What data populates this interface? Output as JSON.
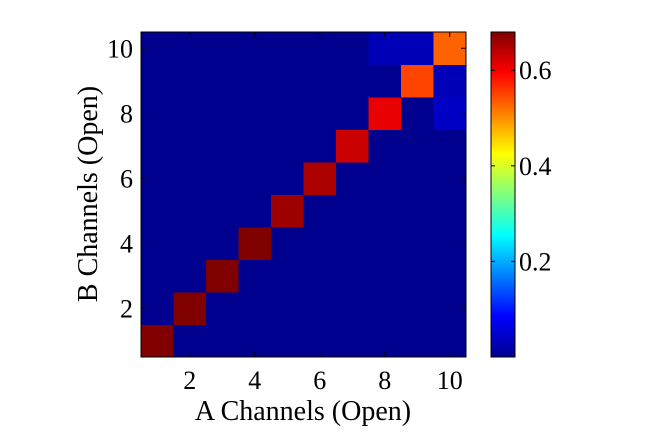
{
  "chart_data": {
    "type": "heatmap",
    "title": "",
    "xlabel": "A Channels (Open)",
    "ylabel": "B Channels (Open)",
    "x_categories": [
      1,
      2,
      3,
      4,
      5,
      6,
      7,
      8,
      9,
      10
    ],
    "y_categories": [
      1,
      2,
      3,
      4,
      5,
      6,
      7,
      8,
      9,
      10
    ],
    "x_ticks": [
      "2",
      "4",
      "6",
      "8",
      "10"
    ],
    "y_ticks": [
      "2",
      "4",
      "6",
      "8",
      "10"
    ],
    "colormap": "jet",
    "clim": [
      0.0,
      0.68
    ],
    "colorbar_ticks": [
      "0.2",
      "0.4",
      "0.6"
    ],
    "colorbar_tick_values": [
      0.2,
      0.4,
      0.6
    ],
    "cells": [
      {
        "x": 1,
        "y": 1,
        "value": 0.68
      },
      {
        "x": 2,
        "y": 2,
        "value": 0.68
      },
      {
        "x": 3,
        "y": 3,
        "value": 0.68
      },
      {
        "x": 4,
        "y": 4,
        "value": 0.68
      },
      {
        "x": 5,
        "y": 5,
        "value": 0.66
      },
      {
        "x": 6,
        "y": 6,
        "value": 0.65
      },
      {
        "x": 7,
        "y": 7,
        "value": 0.63
      },
      {
        "x": 8,
        "y": 8,
        "value": 0.61
      },
      {
        "x": 9,
        "y": 9,
        "value": 0.55
      },
      {
        "x": 10,
        "y": 10,
        "value": 0.53
      },
      {
        "x": 8,
        "y": 10,
        "value": 0.03
      },
      {
        "x": 9,
        "y": 10,
        "value": 0.03
      },
      {
        "x": 10,
        "y": 9,
        "value": 0.03
      },
      {
        "x": 10,
        "y": 8,
        "value": 0.04
      }
    ],
    "background_value": 0.0
  }
}
